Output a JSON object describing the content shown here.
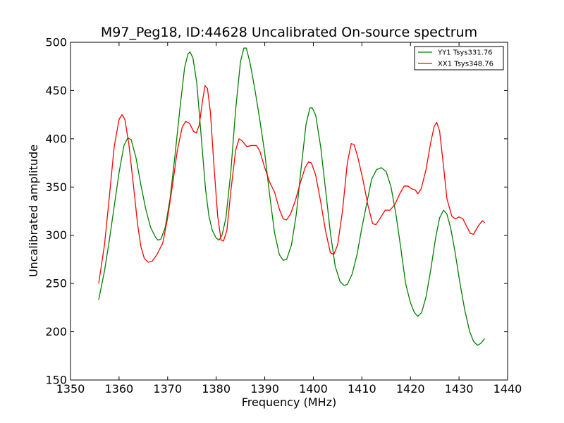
{
  "chart_data": {
    "type": "line",
    "title": "M97_Peg18, ID:44628 Uncalibrated On-source spectrum",
    "xlabel": "Frequency (MHz)",
    "ylabel": "Uncalibrated amplitude",
    "xlim": [
      1350,
      1440
    ],
    "ylim": [
      150,
      500
    ],
    "xticks": [
      "1350",
      "1360",
      "1370",
      "1380",
      "1390",
      "1400",
      "1410",
      "1420",
      "1430",
      "1440"
    ],
    "yticks": [
      "150",
      "200",
      "250",
      "300",
      "350",
      "400",
      "450",
      "500"
    ],
    "grid": false,
    "legend_position": "top-right",
    "series": [
      {
        "name": "YY1 Tsys331.76",
        "color": "#008000",
        "points": [
          [
            1355.8,
            233
          ],
          [
            1357,
            263
          ],
          [
            1358,
            295
          ],
          [
            1359,
            330
          ],
          [
            1360,
            365
          ],
          [
            1361,
            393
          ],
          [
            1361.8,
            401
          ],
          [
            1362.5,
            399
          ],
          [
            1363.5,
            380
          ],
          [
            1364.5,
            352
          ],
          [
            1365.5,
            327
          ],
          [
            1366.5,
            308
          ],
          [
            1367.5,
            298
          ],
          [
            1368,
            295
          ],
          [
            1368.6,
            296
          ],
          [
            1369.5,
            308
          ],
          [
            1370.5,
            338
          ],
          [
            1371.5,
            382
          ],
          [
            1372.5,
            430
          ],
          [
            1373.5,
            474
          ],
          [
            1374.2,
            488
          ],
          [
            1374.6,
            490
          ],
          [
            1375.2,
            484
          ],
          [
            1376,
            458
          ],
          [
            1377,
            397
          ],
          [
            1377.8,
            348
          ],
          [
            1378.5,
            320
          ],
          [
            1379.2,
            305
          ],
          [
            1380,
            297
          ],
          [
            1380.6,
            295
          ],
          [
            1381.2,
            300
          ],
          [
            1382,
            318
          ],
          [
            1383,
            365
          ],
          [
            1384,
            430
          ],
          [
            1385,
            480
          ],
          [
            1385.7,
            494
          ],
          [
            1386.2,
            494
          ],
          [
            1387,
            478
          ],
          [
            1388,
            450
          ],
          [
            1389,
            419
          ],
          [
            1390,
            385
          ],
          [
            1391,
            342
          ],
          [
            1392,
            303
          ],
          [
            1393,
            280
          ],
          [
            1393.8,
            274
          ],
          [
            1394.5,
            275
          ],
          [
            1395.5,
            290
          ],
          [
            1396.5,
            322
          ],
          [
            1397.5,
            370
          ],
          [
            1398.5,
            415
          ],
          [
            1399.3,
            432
          ],
          [
            1399.8,
            432
          ],
          [
            1400.5,
            424
          ],
          [
            1401.5,
            392
          ],
          [
            1402.5,
            348
          ],
          [
            1403.5,
            303
          ],
          [
            1404.5,
            268
          ],
          [
            1405.5,
            252
          ],
          [
            1406.3,
            248
          ],
          [
            1407,
            249
          ],
          [
            1408,
            260
          ],
          [
            1409,
            280
          ],
          [
            1410,
            308
          ],
          [
            1411,
            333
          ],
          [
            1412,
            358
          ],
          [
            1413,
            368
          ],
          [
            1414,
            370
          ],
          [
            1415,
            366
          ],
          [
            1416,
            350
          ],
          [
            1417,
            322
          ],
          [
            1418,
            287
          ],
          [
            1419,
            250
          ],
          [
            1420,
            230
          ],
          [
            1420.8,
            220
          ],
          [
            1421.5,
            216
          ],
          [
            1422.3,
            220
          ],
          [
            1423.2,
            236
          ],
          [
            1424.2,
            265
          ],
          [
            1425.2,
            298
          ],
          [
            1426,
            318
          ],
          [
            1426.8,
            326
          ],
          [
            1427.5,
            322
          ],
          [
            1428.3,
            307
          ],
          [
            1429.2,
            282
          ],
          [
            1430.2,
            250
          ],
          [
            1431.2,
            222
          ],
          [
            1432.2,
            200
          ],
          [
            1433,
            190
          ],
          [
            1433.8,
            186
          ],
          [
            1434.5,
            188
          ],
          [
            1435.3,
            193
          ]
        ]
      },
      {
        "name": "XX1 Tsys348.76",
        "color": "#ff0000",
        "points": [
          [
            1355.8,
            250
          ],
          [
            1357,
            290
          ],
          [
            1358,
            340
          ],
          [
            1359,
            392
          ],
          [
            1360,
            420
          ],
          [
            1360.6,
            425
          ],
          [
            1361.2,
            420
          ],
          [
            1362,
            395
          ],
          [
            1363,
            350
          ],
          [
            1363.8,
            312
          ],
          [
            1364.5,
            288
          ],
          [
            1365.2,
            276
          ],
          [
            1366,
            272
          ],
          [
            1366.8,
            273
          ],
          [
            1367.8,
            280
          ],
          [
            1369,
            292
          ],
          [
            1370,
            318
          ],
          [
            1371,
            352
          ],
          [
            1372,
            388
          ],
          [
            1373,
            412
          ],
          [
            1373.7,
            418
          ],
          [
            1374.5,
            416
          ],
          [
            1375.3,
            408
          ],
          [
            1375.9,
            406
          ],
          [
            1376.5,
            414
          ],
          [
            1377.2,
            440
          ],
          [
            1377.7,
            455
          ],
          [
            1378.2,
            452
          ],
          [
            1378.8,
            428
          ],
          [
            1379.5,
            375
          ],
          [
            1380.3,
            320
          ],
          [
            1381,
            295
          ],
          [
            1381.5,
            294
          ],
          [
            1382.2,
            305
          ],
          [
            1383,
            345
          ],
          [
            1384,
            388
          ],
          [
            1384.7,
            400
          ],
          [
            1385.3,
            398
          ],
          [
            1386.3,
            392
          ],
          [
            1387.3,
            393
          ],
          [
            1388.3,
            393
          ],
          [
            1389,
            387
          ],
          [
            1390,
            370
          ],
          [
            1391,
            355
          ],
          [
            1392,
            345
          ],
          [
            1393,
            327
          ],
          [
            1393.8,
            317
          ],
          [
            1394.5,
            316
          ],
          [
            1395.3,
            322
          ],
          [
            1396.3,
            336
          ],
          [
            1397.3,
            354
          ],
          [
            1398.3,
            370
          ],
          [
            1399,
            376
          ],
          [
            1399.6,
            375
          ],
          [
            1400.5,
            362
          ],
          [
            1401.5,
            335
          ],
          [
            1402.5,
            305
          ],
          [
            1403.5,
            282
          ],
          [
            1404.2,
            280
          ],
          [
            1405,
            290
          ],
          [
            1406,
            325
          ],
          [
            1407,
            375
          ],
          [
            1407.8,
            395
          ],
          [
            1408.4,
            394
          ],
          [
            1409.2,
            380
          ],
          [
            1410.2,
            358
          ],
          [
            1411.2,
            332
          ],
          [
            1412.2,
            312
          ],
          [
            1412.9,
            311
          ],
          [
            1413.8,
            318
          ],
          [
            1414.8,
            326
          ],
          [
            1415.8,
            326
          ],
          [
            1416.8,
            332
          ],
          [
            1417.8,
            343
          ],
          [
            1418.7,
            351
          ],
          [
            1419.5,
            351
          ],
          [
            1420.3,
            348
          ],
          [
            1421,
            347
          ],
          [
            1421.5,
            343
          ],
          [
            1422.2,
            348
          ],
          [
            1423.2,
            368
          ],
          [
            1424.2,
            397
          ],
          [
            1424.9,
            413
          ],
          [
            1425.4,
            417
          ],
          [
            1426,
            408
          ],
          [
            1426.8,
            372
          ],
          [
            1427.5,
            338
          ],
          [
            1428.5,
            320
          ],
          [
            1429.2,
            317
          ],
          [
            1430,
            319
          ],
          [
            1430.8,
            317
          ],
          [
            1431.5,
            310
          ],
          [
            1432.3,
            302
          ],
          [
            1433,
            301
          ],
          [
            1434,
            310
          ],
          [
            1434.8,
            315
          ],
          [
            1435.3,
            313
          ]
        ]
      }
    ]
  }
}
